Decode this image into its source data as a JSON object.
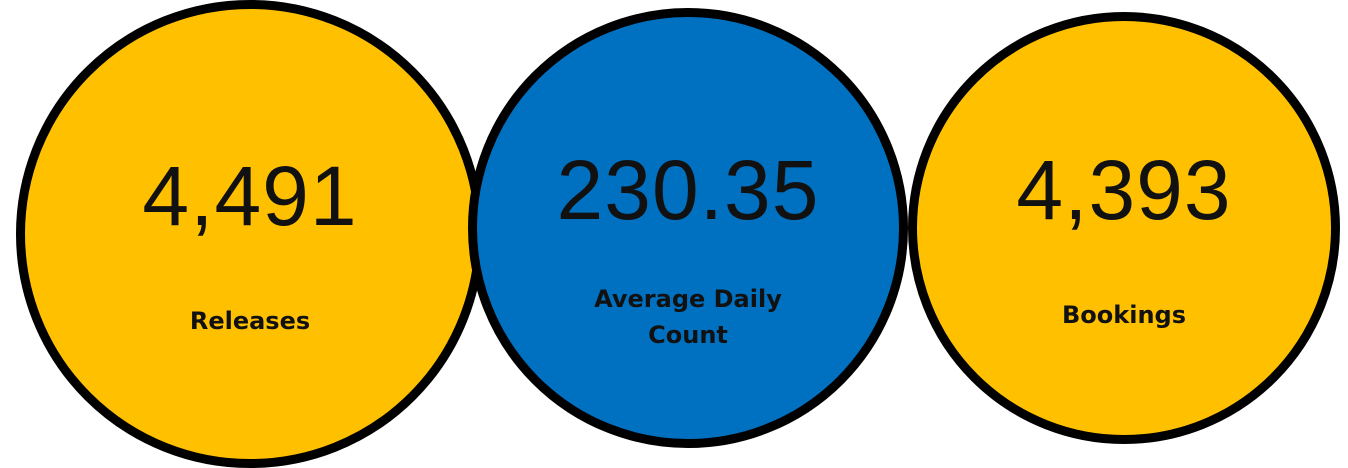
{
  "kpis": [
    {
      "value": "4,491",
      "label": "Releases",
      "color": "#FFC000"
    },
    {
      "value": "230.35",
      "label": "Average Daily Count",
      "color": "#0070C0"
    },
    {
      "value": "4,393",
      "label": "Bookings",
      "color": "#FFC000"
    }
  ]
}
